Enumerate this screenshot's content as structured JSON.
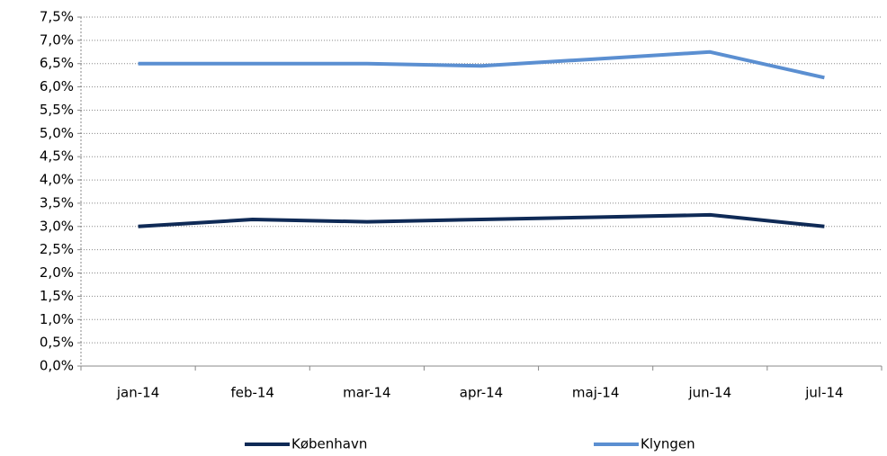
{
  "chart_data": {
    "type": "line",
    "categories": [
      "jan-14",
      "feb-14",
      "mar-14",
      "apr-14",
      "maj-14",
      "jun-14",
      "jul-14"
    ],
    "series": [
      {
        "name": "København",
        "color": "#0f2a56",
        "values": [
          3.0,
          3.15,
          3.1,
          3.15,
          3.2,
          3.25,
          3.0
        ]
      },
      {
        "name": "Klyngen",
        "color": "#5b8fd1",
        "values": [
          6.5,
          6.5,
          6.5,
          6.45,
          6.6,
          6.75,
          6.2
        ]
      }
    ],
    "ylim": [
      0,
      7.5
    ],
    "yticks": [
      {
        "value": 0,
        "label": "0,0%"
      },
      {
        "value": 0.5,
        "label": "0,5%"
      },
      {
        "value": 1,
        "label": "1,0%"
      },
      {
        "value": 1.5,
        "label": "1,5%"
      },
      {
        "value": 2,
        "label": "2,0%"
      },
      {
        "value": 2.5,
        "label": "2,5%"
      },
      {
        "value": 3,
        "label": "3,0%"
      },
      {
        "value": 3.5,
        "label": "3,5%"
      },
      {
        "value": 4,
        "label": "4,0%"
      },
      {
        "value": 4.5,
        "label": "4,5%"
      },
      {
        "value": 5,
        "label": "5,0%"
      },
      {
        "value": 5.5,
        "label": "5,5%"
      },
      {
        "value": 6,
        "label": "6,0%"
      },
      {
        "value": 6.5,
        "label": "6,5%"
      },
      {
        "value": 7,
        "label": "7,0%"
      },
      {
        "value": 7.5,
        "label": "7,5%"
      }
    ],
    "grid": true,
    "legend": "bottom"
  }
}
